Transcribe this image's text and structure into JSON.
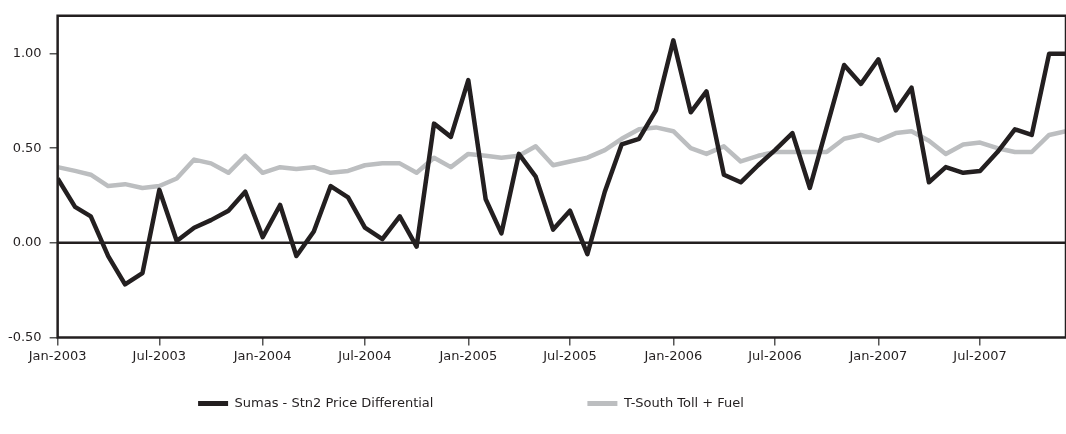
{
  "chart_data": {
    "type": "line",
    "x": [
      "2003-01",
      "2003-02",
      "2003-03",
      "2003-04",
      "2003-05",
      "2003-06",
      "2003-07",
      "2003-08",
      "2003-09",
      "2003-10",
      "2003-11",
      "2003-12",
      "2004-01",
      "2004-02",
      "2004-03",
      "2004-04",
      "2004-05",
      "2004-06",
      "2004-07",
      "2004-08",
      "2004-09",
      "2004-10",
      "2004-11",
      "2004-12",
      "2005-01",
      "2005-02",
      "2005-03",
      "2005-04",
      "2005-05",
      "2005-06",
      "2005-07",
      "2005-08",
      "2005-09",
      "2005-10",
      "2005-11",
      "2005-12",
      "2006-01",
      "2006-02",
      "2006-03",
      "2006-04",
      "2006-05",
      "2006-06",
      "2006-07",
      "2006-08",
      "2006-09",
      "2006-10",
      "2006-11",
      "2006-12",
      "2007-01",
      "2007-02",
      "2007-03",
      "2007-04",
      "2007-05",
      "2007-06",
      "2007-07",
      "2007-08",
      "2007-09",
      "2007-10",
      "2007-11",
      "2007-12"
    ],
    "series": [
      {
        "name": "Sumas - Stn2 Price Differential",
        "color": "#231f20",
        "values": [
          0.34,
          0.19,
          0.14,
          -0.07,
          -0.22,
          -0.16,
          0.28,
          0.01,
          0.08,
          0.12,
          0.17,
          0.27,
          0.03,
          0.2,
          -0.07,
          0.06,
          0.3,
          0.24,
          0.08,
          0.02,
          0.14,
          -0.02,
          0.63,
          0.56,
          0.86,
          0.23,
          0.05,
          0.47,
          0.35,
          0.07,
          0.17,
          -0.06,
          0.27,
          0.52,
          0.55,
          0.7,
          1.07,
          0.69,
          0.8,
          0.36,
          0.32,
          0.41,
          0.49,
          0.58,
          0.29,
          0.61,
          0.94,
          0.84,
          0.97,
          0.7,
          0.82,
          0.32,
          0.4,
          0.37,
          0.38,
          0.48,
          0.6,
          0.57,
          1.0,
          1.0
        ]
      },
      {
        "name": "T-South Toll + Fuel",
        "color": "#bcbec0",
        "values": [
          0.4,
          0.38,
          0.36,
          0.3,
          0.31,
          0.29,
          0.3,
          0.34,
          0.44,
          0.42,
          0.37,
          0.46,
          0.37,
          0.4,
          0.39,
          0.4,
          0.37,
          0.38,
          0.41,
          0.42,
          0.42,
          0.37,
          0.45,
          0.4,
          0.47,
          0.46,
          0.45,
          0.46,
          0.51,
          0.41,
          0.43,
          0.45,
          0.49,
          0.55,
          0.6,
          0.61,
          0.59,
          0.5,
          0.47,
          0.51,
          0.43,
          0.46,
          0.48,
          0.48,
          0.48,
          0.48,
          0.55,
          0.57,
          0.54,
          0.58,
          0.59,
          0.54,
          0.47,
          0.52,
          0.53,
          0.5,
          0.48,
          0.48,
          0.57,
          0.59
        ]
      }
    ],
    "xlim": [
      "2003-01",
      "2007-12"
    ],
    "xticks": [
      {
        "value": "2003-01",
        "label": "Jan-2003"
      },
      {
        "value": "2003-07",
        "label": "Jul-2003"
      },
      {
        "value": "2004-01",
        "label": "Jan-2004"
      },
      {
        "value": "2004-07",
        "label": "Jul-2004"
      },
      {
        "value": "2005-01",
        "label": "Jan-2005"
      },
      {
        "value": "2005-07",
        "label": "Jul-2005"
      },
      {
        "value": "2006-01",
        "label": "Jan-2006"
      },
      {
        "value": "2006-07",
        "label": "Jul-2006"
      },
      {
        "value": "2007-01",
        "label": "Jan-2007"
      },
      {
        "value": "2007-07",
        "label": "Jul-2007"
      }
    ],
    "ylim": [
      -0.5,
      1.2
    ],
    "yticks": [
      {
        "value": -0.5,
        "label": "-0.50"
      },
      {
        "value": 0,
        "label": "0.00"
      },
      {
        "value": 0.5,
        "label": "0.50"
      },
      {
        "value": 1,
        "label": "1.00"
      }
    ],
    "ref_lines": [
      {
        "axis": "y",
        "value": 0,
        "color": "#231f20"
      }
    ],
    "grid": false,
    "legend": "bottom",
    "marker": "none",
    "line_style": "solid"
  }
}
